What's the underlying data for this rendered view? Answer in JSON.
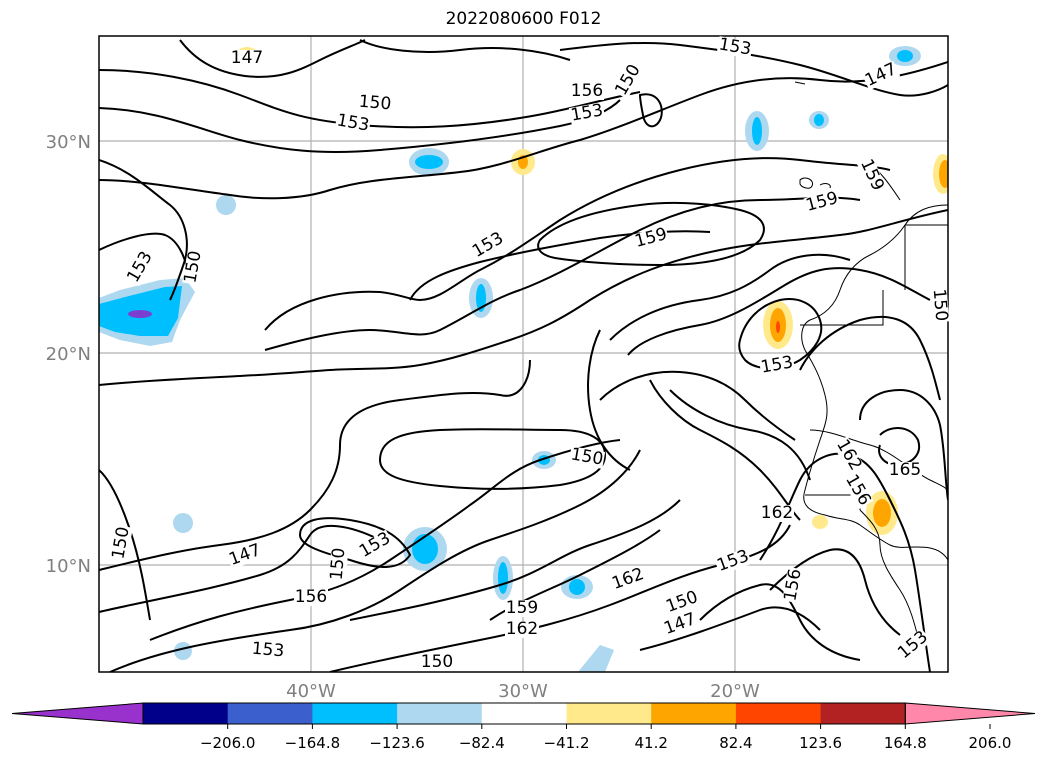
{
  "title": "2022080600 F012",
  "map": {
    "lat_labels": [
      "30°N",
      "20°N",
      "10°N"
    ],
    "lon_labels": [
      "40°W",
      "30°W",
      "20°W"
    ],
    "grid": true,
    "contour_labels": [
      {
        "text": "147"
      },
      {
        "text": "153"
      },
      {
        "text": "147"
      },
      {
        "text": "150"
      },
      {
        "text": "153"
      },
      {
        "text": "156"
      },
      {
        "text": "150"
      },
      {
        "text": "153"
      },
      {
        "text": "153"
      },
      {
        "text": "150"
      },
      {
        "text": "153"
      },
      {
        "text": "159"
      },
      {
        "text": "159"
      },
      {
        "text": "159"
      },
      {
        "text": "153"
      },
      {
        "text": "150"
      },
      {
        "text": "150"
      },
      {
        "text": "162"
      },
      {
        "text": "165"
      },
      {
        "text": "156"
      },
      {
        "text": "162"
      },
      {
        "text": "150"
      },
      {
        "text": "147"
      },
      {
        "text": "150"
      },
      {
        "text": "153"
      },
      {
        "text": "156"
      },
      {
        "text": "162"
      },
      {
        "text": "159"
      },
      {
        "text": "162"
      },
      {
        "text": "153"
      },
      {
        "text": "150"
      },
      {
        "text": "147"
      },
      {
        "text": "156"
      },
      {
        "text": "153"
      },
      {
        "text": "150"
      },
      {
        "text": "153"
      }
    ]
  },
  "colorbar": {
    "colors": [
      "#9932cc",
      "#00008b",
      "#3b5fcd",
      "#00bfff",
      "#add8f0",
      "#ffffff",
      "#ffe98a",
      "#ffa500",
      "#ff4500",
      "#b22222",
      "#ff88aa"
    ],
    "ticks": [
      "−206.0",
      "−164.8",
      "−123.6",
      "−82.4",
      "−41.2",
      "41.2",
      "82.4",
      "123.6",
      "164.8",
      "206.0"
    ]
  }
}
